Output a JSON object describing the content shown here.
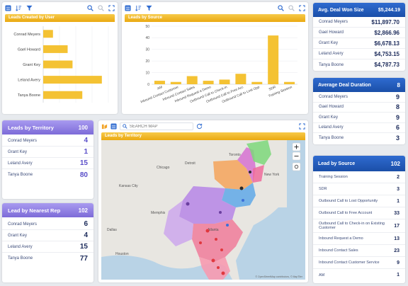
{
  "colors": {
    "accent_yellow": "#f2b928",
    "accent_blue": "#1b4fa8",
    "accent_lavender": "#8b7be0",
    "toolbar_blue": "#2f6bd0"
  },
  "leads_by_user": {
    "title": "Leads Created by User",
    "chart_data": {
      "type": "bar",
      "orientation": "horizontal",
      "categories": [
        "Conrad Meyers",
        "Gael Howard",
        "Grant Key",
        "Leland Avery",
        "Tanya Boone"
      ],
      "values": [
        6,
        15,
        18,
        36,
        24
      ],
      "xlim": [
        0,
        40
      ],
      "grid": true
    }
  },
  "leads_by_source": {
    "title": "Leads by Source",
    "chart_data": {
      "type": "bar",
      "categories": [
        "AM",
        "Inbound Contact Customer",
        "Inbound Contact Sales",
        "Inbound Request a Demo",
        "Outbound Call to Check-in",
        "Outbound Call to Free Acc",
        "Outbound Call to Lost Opp",
        "SDR",
        "Training Session"
      ],
      "values": [
        3,
        2,
        7,
        3,
        4,
        9,
        2,
        42,
        2
      ],
      "ylim": [
        0,
        50
      ],
      "grid": true
    }
  },
  "avg_deal_won": {
    "title": "Avg. Deal Won Size",
    "total": "$5,244.19",
    "rows": [
      {
        "name": "Conrad Meyers",
        "value": "$11,897.70"
      },
      {
        "name": "Gael Howard",
        "value": "$2,866.96"
      },
      {
        "name": "Grant Key",
        "value": "$6,678.13"
      },
      {
        "name": "Leland Avery",
        "value": "$4,753.15"
      },
      {
        "name": "Tanya Boone",
        "value": "$4,787.73"
      }
    ]
  },
  "avg_deal_duration": {
    "title": "Average Deal Duration",
    "total": "8",
    "rows": [
      {
        "name": "Conrad Meyers",
        "value": "9"
      },
      {
        "name": "Gael Howard",
        "value": "8"
      },
      {
        "name": "Grant Key",
        "value": "9"
      },
      {
        "name": "Leland Avery",
        "value": "6"
      },
      {
        "name": "Tanya Boone",
        "value": "3"
      }
    ]
  },
  "leads_by_territory": {
    "title": "Leads by Territory",
    "total": "100",
    "rows": [
      {
        "name": "Conrad Meyers",
        "value": "4"
      },
      {
        "name": "Grant Key",
        "value": "1"
      },
      {
        "name": "Leland Avery",
        "value": "15"
      },
      {
        "name": "Tanya Boone",
        "value": "80"
      }
    ]
  },
  "leads_by_nearest_rep": {
    "title": "Lead by Nearest Rep",
    "total": "102",
    "rows": [
      {
        "name": "Conrad Meyers",
        "value": "6"
      },
      {
        "name": "Grant Key",
        "value": "4"
      },
      {
        "name": "Leland Avery",
        "value": "15"
      },
      {
        "name": "Tanya Boone",
        "value": "77"
      }
    ]
  },
  "map": {
    "search_placeholder": "SEARCH MAP",
    "title": "Leads by Territory",
    "attribution": "© OpenStreetMap contributors, © MapTiler",
    "city_labels": [
      "Toronto",
      "Chicago",
      "Detroit",
      "Kansas City",
      "Memphis",
      "Dallas",
      "Houston",
      "Atlanta",
      "New York"
    ]
  },
  "lead_by_source_list": {
    "title": "Lead by Source",
    "total": "102",
    "rows": [
      {
        "name": "Training Session",
        "value": "2"
      },
      {
        "name": "SDR",
        "value": "3"
      },
      {
        "name": "Outbound Call to Lost Opportunity",
        "value": "1"
      },
      {
        "name": "Outbound Call to Free Account",
        "value": "33"
      },
      {
        "name": "Outbound Call to Check-in on Existing Customer",
        "value": "17"
      },
      {
        "name": "Inbound Request a Demo",
        "value": "13"
      },
      {
        "name": "Inbound Contact Sales",
        "value": "23"
      },
      {
        "name": "Inbound Contact Customer Service",
        "value": "9"
      },
      {
        "name": "AM",
        "value": "1"
      }
    ]
  }
}
